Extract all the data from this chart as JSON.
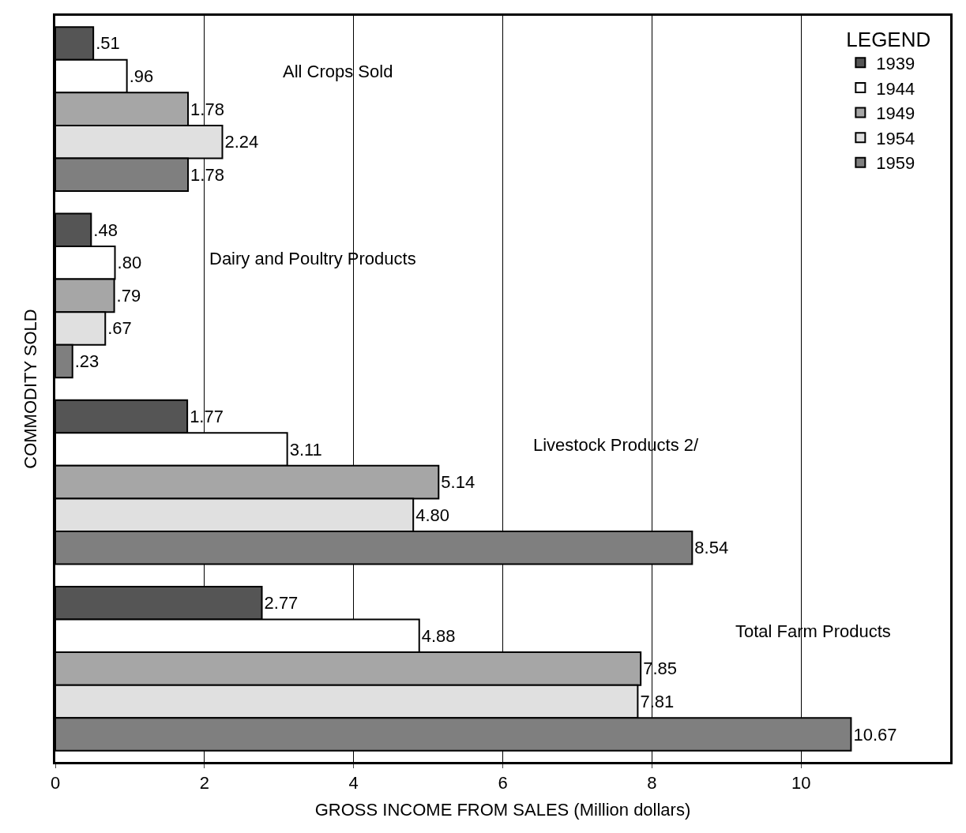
{
  "chart_data": {
    "type": "bar",
    "orientation": "horizontal",
    "xlabel": "GROSS INCOME FROM SALES (Million dollars)",
    "ylabel": "COMMODITY SOLD",
    "legend_title": "LEGEND",
    "categories": [
      "All Crops Sold",
      "Dairy and Poultry Products",
      "Livestock Products 2/",
      "Total Farm Products"
    ],
    "series": [
      {
        "name": "1939",
        "color": "#555555",
        "values": [
          0.51,
          0.48,
          1.77,
          2.77
        ],
        "value_labels": [
          ".51",
          ".48",
          "1.77",
          "2.77"
        ]
      },
      {
        "name": "1944",
        "color": "#ffffff",
        "values": [
          0.96,
          0.8,
          3.11,
          4.88
        ],
        "value_labels": [
          ".96",
          ".80",
          "3.11",
          "4.88"
        ]
      },
      {
        "name": "1949",
        "color": "#a6a6a6",
        "values": [
          1.78,
          0.79,
          5.14,
          7.85
        ],
        "value_labels": [
          "1.78",
          ".79",
          "5.14",
          "7.85"
        ]
      },
      {
        "name": "1954",
        "color": "#e0e0e0",
        "values": [
          2.24,
          0.67,
          4.8,
          7.81
        ],
        "value_labels": [
          "2.24",
          ".67",
          "4.80",
          "7.81"
        ]
      },
      {
        "name": "1959",
        "color": "#7f7f7f",
        "values": [
          1.78,
          0.23,
          8.54,
          10.67
        ],
        "value_labels": [
          "1.78",
          ".23",
          "8.54",
          "10.67"
        ]
      }
    ],
    "xlim": [
      0,
      12
    ],
    "xticks": [
      0,
      2,
      4,
      6,
      8,
      10
    ],
    "grid": "x",
    "legend": "top right",
    "tick_labels": "x"
  }
}
